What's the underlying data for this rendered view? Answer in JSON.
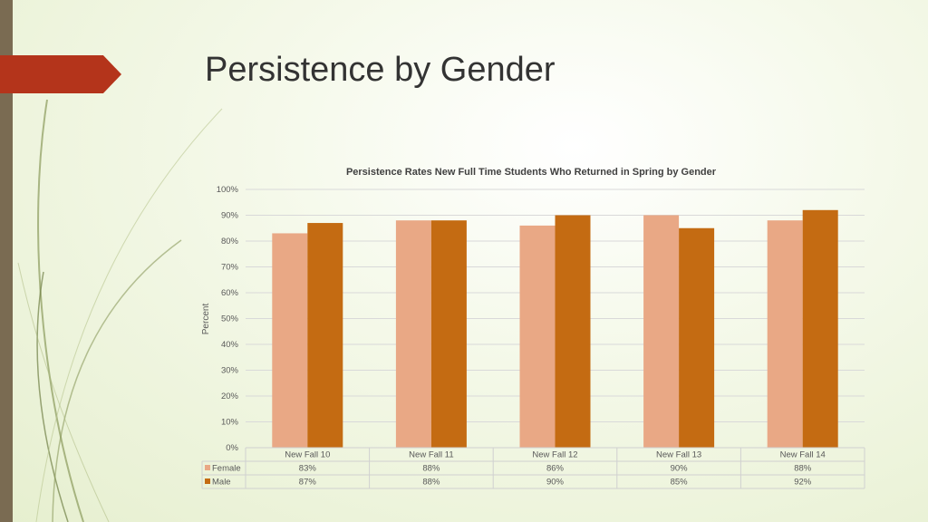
{
  "slide": {
    "title": "Persistence by Gender"
  },
  "chart_data": {
    "type": "bar",
    "title": "Persistence Rates New Full Time Students Who Returned in Spring by Gender",
    "ylabel": "Percent",
    "xlabel": "",
    "ylim": [
      0,
      100
    ],
    "yticks": [
      "0%",
      "10%",
      "20%",
      "30%",
      "40%",
      "50%",
      "60%",
      "70%",
      "80%",
      "90%",
      "100%"
    ],
    "categories": [
      "New Fall 10",
      "New Fall 11",
      "New Fall 12",
      "New Fall 13",
      "New Fall 14"
    ],
    "series": [
      {
        "name": "Female",
        "values": [
          83,
          88,
          86,
          90,
          88
        ],
        "labels": [
          "83%",
          "88%",
          "86%",
          "90%",
          "88%"
        ],
        "color": "#e9a885"
      },
      {
        "name": "Male",
        "values": [
          87,
          88,
          90,
          85,
          92
        ],
        "labels": [
          "87%",
          "88%",
          "90%",
          "85%",
          "92%"
        ],
        "color": "#c46b12"
      }
    ],
    "grid": true,
    "legend": "data-table"
  }
}
